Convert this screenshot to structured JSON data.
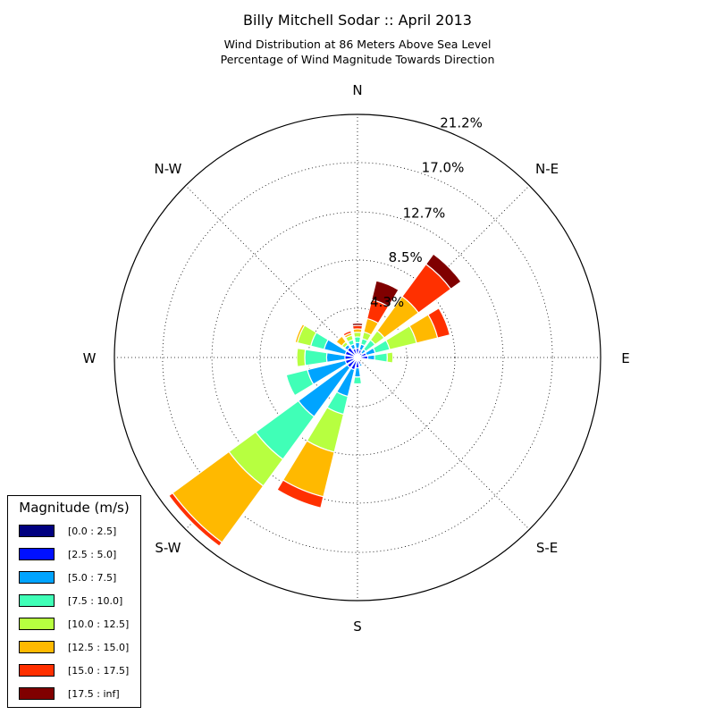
{
  "title": "Billy Mitchell Sodar :: April 2013",
  "subtitle_line1": "Wind Distribution at 86 Meters Above Sea Level",
  "subtitle_line2": "Percentage of Wind Magnitude Towards Direction",
  "legend": {
    "title": "Magnitude (m/s)",
    "items": [
      {
        "label": "[0.0 : 2.5]",
        "color": "#000080"
      },
      {
        "label": "[2.5 : 5.0]",
        "color": "#0010ff"
      },
      {
        "label": "[5.0 : 7.5]",
        "color": "#00a4ff"
      },
      {
        "label": "[7.5 : 10.0]",
        "color": "#40ffb7"
      },
      {
        "label": "[10.0 : 12.5]",
        "color": "#b7ff40"
      },
      {
        "label": "[12.5 : 15.0]",
        "color": "#ffb900"
      },
      {
        "label": "[15.0 : 17.5]",
        "color": "#ff3000"
      },
      {
        "label": "[17.5 : inf]",
        "color": "#800000"
      }
    ]
  },
  "chart_data": {
    "type": "windrose",
    "title": "Billy Mitchell Sodar :: April 2013",
    "rmax": 21.2,
    "radial_ticks": [
      4.3,
      8.5,
      12.7,
      17.0,
      21.2
    ],
    "radial_tick_labels": [
      "4.3%",
      "8.5%",
      "12.7%",
      "17.0%",
      "21.2%"
    ],
    "direction_labels": [
      {
        "label": "N",
        "angle": 0
      },
      {
        "label": "N-E",
        "angle": 45
      },
      {
        "label": "E",
        "angle": 90
      },
      {
        "label": "S-E",
        "angle": 135
      },
      {
        "label": "S",
        "angle": 180
      },
      {
        "label": "S-W",
        "angle": 225
      },
      {
        "label": "W",
        "angle": 270
      },
      {
        "label": "N-W",
        "angle": 315
      }
    ],
    "sector_width_deg": 22.5,
    "sectors": [
      {
        "direction": 0,
        "stacks": [
          0.3,
          0.5,
          0.5,
          0.5,
          0.4,
          0.3,
          0.3,
          0.2
        ]
      },
      {
        "direction": 22.5,
        "stacks": [
          0.3,
          0.4,
          0.5,
          0.5,
          0.6,
          1.2,
          1.7,
          1.7
        ]
      },
      {
        "direction": 45,
        "stacks": [
          0.2,
          0.3,
          0.4,
          1.0,
          1.0,
          3.7,
          3.5,
          1.1
        ]
      },
      {
        "direction": 67.5,
        "stacks": [
          0.3,
          0.5,
          0.8,
          1.3,
          2.4,
          1.9,
          1.1,
          0.0
        ]
      },
      {
        "direction": 90,
        "stacks": [
          0.3,
          0.6,
          0.6,
          1.1,
          0.5,
          0.0,
          0.0,
          0.0
        ]
      },
      {
        "direction": 112.5,
        "stacks": [
          0.2,
          0.2,
          0.0,
          0.0,
          0.0,
          0.0,
          0.0,
          0.0
        ]
      },
      {
        "direction": 135,
        "stacks": [
          0.2,
          0.1,
          0.0,
          0.0,
          0.0,
          0.0,
          0.0,
          0.0
        ]
      },
      {
        "direction": 157.5,
        "stacks": [
          0.3,
          0.3,
          0.2,
          0.0,
          0.0,
          0.0,
          0.0,
          0.0
        ]
      },
      {
        "direction": 180,
        "stacks": [
          0.3,
          0.6,
          0.8,
          0.6,
          0.0,
          0.0,
          0.0,
          0.0
        ]
      },
      {
        "direction": 202.5,
        "stacks": [
          0.3,
          0.8,
          2.4,
          1.6,
          3.4,
          4.0,
          1.0,
          0.0
        ]
      },
      {
        "direction": 225,
        "stacks": [
          0.3,
          0.8,
          5.3,
          4.6,
          2.9,
          6.1,
          0.4,
          0.0
        ]
      },
      {
        "direction": 247.5,
        "stacks": [
          0.3,
          0.8,
          3.4,
          1.9,
          0.0,
          0.0,
          0.0,
          0.0
        ]
      },
      {
        "direction": 270,
        "stacks": [
          0.3,
          0.8,
          1.6,
          1.9,
          0.7,
          0.0,
          0.0,
          0.0
        ]
      },
      {
        "direction": 292.5,
        "stacks": [
          0.3,
          0.8,
          1.9,
          1.2,
          1.2,
          0.2,
          0.0,
          0.0
        ]
      },
      {
        "direction": 315,
        "stacks": [
          0.3,
          0.8,
          0.3,
          0.0,
          0.3,
          0.6,
          0.0,
          0.0
        ]
      },
      {
        "direction": 337.5,
        "stacks": [
          0.3,
          0.5,
          0.4,
          0.4,
          0.4,
          0.2,
          0.2,
          0.0
        ]
      }
    ]
  }
}
